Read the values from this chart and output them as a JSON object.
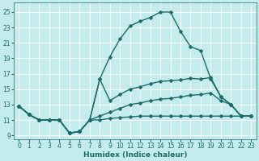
{
  "title": "",
  "xlabel": "Humidex (Indice chaleur)",
  "bg_color": "#c5ecec",
  "grid_color": "#ffffff",
  "line_color": "#1a6b6b",
  "xlim": [
    -0.5,
    23.5
  ],
  "ylim": [
    8.5,
    26.2
  ],
  "xticks": [
    0,
    1,
    2,
    3,
    4,
    5,
    6,
    7,
    8,
    9,
    10,
    11,
    12,
    13,
    14,
    15,
    16,
    17,
    18,
    19,
    20,
    21,
    22,
    23
  ],
  "yticks": [
    9,
    11,
    13,
    15,
    17,
    19,
    21,
    23,
    25
  ],
  "lines": [
    {
      "x": [
        0,
        1,
        2,
        3,
        4,
        5,
        6,
        7,
        8,
        9,
        10,
        11,
        12,
        13,
        14,
        15,
        16,
        17,
        18,
        19,
        20,
        21,
        22,
        23
      ],
      "y": [
        12.8,
        11.7,
        11.0,
        11.0,
        11.0,
        9.3,
        9.5,
        11.0,
        11.0,
        11.2,
        11.3,
        11.4,
        11.5,
        11.5,
        11.5,
        11.5,
        11.5,
        11.5,
        11.5,
        11.5,
        11.5,
        11.5,
        11.5,
        11.5
      ]
    },
    {
      "x": [
        0,
        1,
        2,
        3,
        4,
        5,
        6,
        7,
        8,
        9,
        10,
        11,
        12,
        13,
        14,
        15,
        16,
        17,
        18,
        19,
        20,
        21,
        22,
        23
      ],
      "y": [
        12.8,
        11.7,
        11.0,
        11.0,
        11.0,
        9.3,
        9.5,
        11.0,
        11.5,
        12.0,
        12.5,
        13.0,
        13.2,
        13.5,
        13.7,
        13.8,
        14.0,
        14.2,
        14.3,
        14.5,
        13.5,
        13.0,
        11.5,
        11.5
      ]
    },
    {
      "x": [
        0,
        1,
        2,
        3,
        4,
        5,
        6,
        7,
        8,
        9,
        10,
        11,
        12,
        13,
        14,
        15,
        16,
        17,
        18,
        19,
        20,
        21,
        22,
        23
      ],
      "y": [
        12.8,
        11.7,
        11.0,
        11.0,
        11.0,
        9.3,
        9.5,
        11.0,
        16.3,
        13.5,
        14.3,
        15.0,
        15.3,
        15.7,
        16.0,
        16.1,
        16.2,
        16.4,
        16.3,
        16.5,
        14.0,
        13.0,
        11.5,
        11.5
      ]
    },
    {
      "x": [
        0,
        1,
        2,
        3,
        4,
        5,
        6,
        7,
        8,
        9,
        10,
        11,
        12,
        13,
        14,
        15,
        16,
        17,
        18,
        19,
        20,
        21,
        22,
        23
      ],
      "y": [
        12.8,
        11.7,
        11.0,
        11.0,
        11.0,
        9.3,
        9.5,
        11.0,
        16.3,
        19.2,
        21.5,
        23.2,
        23.8,
        24.3,
        25.0,
        25.0,
        22.5,
        20.5,
        20.0,
        16.3,
        14.0,
        13.0,
        11.5,
        11.5
      ]
    }
  ],
  "marker_size": 2.5,
  "line_width": 1.0,
  "label_fontsize": 6.5,
  "tick_fontsize": 5.5
}
